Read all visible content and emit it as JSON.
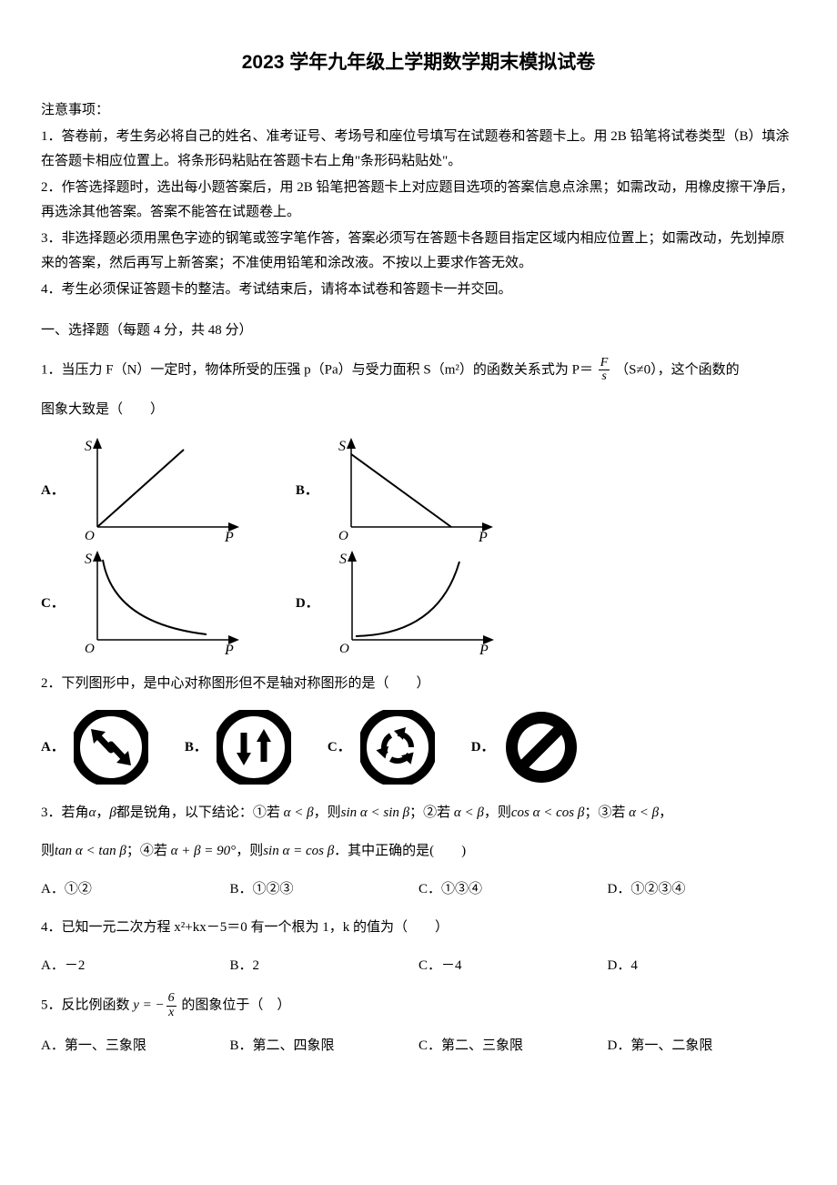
{
  "title": "2023 学年九年级上学期数学期末模拟试卷",
  "notes": {
    "heading": "注意事项：",
    "items": [
      "1．答卷前，考生务必将自己的姓名、准考证号、考场号和座位号填写在试题卷和答题卡上。用 2B 铅笔将试卷类型（B）填涂在答题卡相应位置上。将条形码粘贴在答题卡右上角\"条形码粘贴处\"。",
      "2．作答选择题时，选出每小题答案后，用 2B 铅笔把答题卡上对应题目选项的答案信息点涂黑；如需改动，用橡皮擦干净后，再选涂其他答案。答案不能答在试题卷上。",
      "3．非选择题必须用黑色字迹的钢笔或签字笔作答，答案必须写在答题卡各题目指定区域内相应位置上；如需改动，先划掉原来的答案，然后再写上新答案；不准使用铅笔和涂改液。不按以上要求作答无效。",
      "4．考生必须保证答题卡的整洁。考试结束后，请将本试卷和答题卡一并交回。"
    ]
  },
  "section1": "一、选择题（每题 4 分，共 48 分）",
  "q1": {
    "text_a": "1．当压力 F（N）一定时，物体所受的压强 p（Pa）与受力面积 S（m²）的函数关系式为 P＝",
    "frac_num": "F",
    "frac_den": "s",
    "text_b": "（S≠0），这个函数的",
    "text_c": "图象大致是（　　）",
    "labels": {
      "A": "A．",
      "B": "B．",
      "C": "C．",
      "D": "D．"
    },
    "charts": {
      "axis_x": "P",
      "axis_y": "S",
      "origin": "O",
      "axis_color": "#000000",
      "curve_color": "#000000",
      "bg": "#ffffff",
      "width": 180,
      "height": 120
    }
  },
  "q2": {
    "text": "2．下列图形中，是中心对称图形但不是轴对称图形的是（　　）",
    "labels": {
      "A": "A．",
      "B": "B．",
      "C": "C．",
      "D": "D．"
    },
    "icon": {
      "size": 82,
      "stroke": "#000000",
      "fill": "#000000",
      "ring_width": 10
    }
  },
  "q3": {
    "line1_a": "3．若角",
    "alpha": "α",
    "comma": "，",
    "beta": "β",
    "line1_b": "都是锐角，以下结论：①若",
    "c1": "α < β",
    "line1_c": "，则",
    "r1": "sin α < sin β",
    "line1_d": "；②若",
    "c2": "α < β",
    "line1_e": "，则",
    "r2": "cos α < cos β",
    "line1_f": "；③若",
    "c3": "α < β",
    "line1_g": "，",
    "line2_a": "则",
    "r3": "tan α < tan β",
    "line2_b": "；④若",
    "c4": "α + β = 90°",
    "line2_c": "，则",
    "r4": "sin α = cos β",
    "line2_d": "．其中正确的是(　　)",
    "opts": {
      "A": "A．①②",
      "B": "B．①②③",
      "C": "C．①③④",
      "D": "D．①②③④"
    }
  },
  "q4": {
    "text": "4．已知一元二次方程 x²+kx－5＝0 有一个根为 1，k 的值为（　　）",
    "opts": {
      "A": "A．－2",
      "B": "B．2",
      "C": "C．－4",
      "D": "D．4"
    }
  },
  "q5": {
    "text_a": "5．反比例函数",
    "eq_left": "y = −",
    "frac_num": "6",
    "frac_den": "x",
    "text_b": "的图象位于（　）",
    "opts": {
      "A": "A．第一、三象限",
      "B": "B．第二、四象限",
      "C": "C．第二、三象限",
      "D": "D．第一、二象限"
    }
  }
}
